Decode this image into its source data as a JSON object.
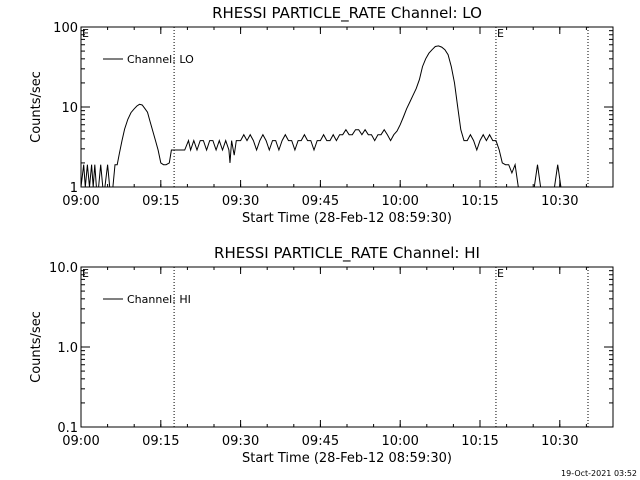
{
  "chart_data": [
    {
      "type": "line",
      "title": "RHESSI PARTICLE_RATE Channel: LO",
      "xlabel": "Start Time (28-Feb-12 08:59:30)",
      "ylabel": "Counts/sec",
      "yscale": "log",
      "xlim": [
        "09:00",
        "10:40"
      ],
      "ylim": [
        1,
        100
      ],
      "x_ticks": [
        "09:00",
        "09:15",
        "09:30",
        "09:45",
        "10:00",
        "10:15",
        "10:30"
      ],
      "y_ticks": [
        "1",
        "10",
        "100"
      ],
      "legend": {
        "entries": [
          "Channel: LO"
        ],
        "placement": "top-left"
      },
      "markers": [
        {
          "time": "09:00",
          "label": "E"
        },
        {
          "time": "10:18",
          "label": "E"
        }
      ],
      "vertical_lines": [
        "09:17.5",
        "10:18",
        "10:35.3"
      ],
      "series": [
        {
          "name": "Channel: LO",
          "points": [
            [
              0.0,
              1
            ],
            [
              0.5,
              1.9
            ],
            [
              0.8,
              1
            ],
            [
              1.2,
              1.9
            ],
            [
              1.6,
              1
            ],
            [
              2.0,
              1.9
            ],
            [
              2.3,
              1
            ],
            [
              2.6,
              1.9
            ],
            [
              2.9,
              1
            ],
            [
              3.3,
              1
            ],
            [
              3.7,
              1.9
            ],
            [
              4.1,
              1
            ],
            [
              4.5,
              1
            ],
            [
              5.0,
              1.9
            ],
            [
              5.4,
              1
            ],
            [
              6.0,
              1
            ],
            [
              6.4,
              1.9
            ],
            [
              6.8,
              1.9
            ],
            [
              7.2,
              2.6
            ],
            [
              7.7,
              3.8
            ],
            [
              8.2,
              5.3
            ],
            [
              8.8,
              7.0
            ],
            [
              9.4,
              8.5
            ],
            [
              10.0,
              9.5
            ],
            [
              10.5,
              10.3
            ],
            [
              11.0,
              10.8
            ],
            [
              11.5,
              10.6
            ],
            [
              12.0,
              9.6
            ],
            [
              12.5,
              8.6
            ],
            [
              13.0,
              6.5
            ],
            [
              13.5,
              5.0
            ],
            [
              14.0,
              3.8
            ],
            [
              14.5,
              2.9
            ],
            [
              15.0,
              2.0
            ],
            [
              15.5,
              1.9
            ],
            [
              16.0,
              1.9
            ],
            [
              16.6,
              2.0
            ],
            [
              17.0,
              2.9
            ],
            [
              17.5,
              2.9
            ],
            [
              18.5,
              2.9
            ],
            [
              19.5,
              2.9
            ],
            [
              20.2,
              3.8
            ],
            [
              20.6,
              2.9
            ],
            [
              21.2,
              3.8
            ],
            [
              21.8,
              2.9
            ],
            [
              22.4,
              3.8
            ],
            [
              23.0,
              3.8
            ],
            [
              23.6,
              2.9
            ],
            [
              24.2,
              3.8
            ],
            [
              24.8,
              3.8
            ],
            [
              25.4,
              2.9
            ],
            [
              26.0,
              3.8
            ],
            [
              26.6,
              2.9
            ],
            [
              27.2,
              3.8
            ],
            [
              27.8,
              2.9
            ],
            [
              28.0,
              2.0
            ],
            [
              28.3,
              3.8
            ],
            [
              28.8,
              2.5
            ],
            [
              29.2,
              3.8
            ],
            [
              30.0,
              3.8
            ],
            [
              30.6,
              4.5
            ],
            [
              31.2,
              3.8
            ],
            [
              31.8,
              4.5
            ],
            [
              32.4,
              3.8
            ],
            [
              33.0,
              2.9
            ],
            [
              33.6,
              3.8
            ],
            [
              34.2,
              4.5
            ],
            [
              34.8,
              3.8
            ],
            [
              35.4,
              2.9
            ],
            [
              36.0,
              3.8
            ],
            [
              36.6,
              3.8
            ],
            [
              37.2,
              2.9
            ],
            [
              37.8,
              3.8
            ],
            [
              38.4,
              4.5
            ],
            [
              39.0,
              3.8
            ],
            [
              39.6,
              3.8
            ],
            [
              40.2,
              2.9
            ],
            [
              40.8,
              3.8
            ],
            [
              41.4,
              3.8
            ],
            [
              42.0,
              4.5
            ],
            [
              42.6,
              3.8
            ],
            [
              43.2,
              3.8
            ],
            [
              43.8,
              2.9
            ],
            [
              44.4,
              3.8
            ],
            [
              45.0,
              3.8
            ],
            [
              45.6,
              4.5
            ],
            [
              46.2,
              3.8
            ],
            [
              46.8,
              3.8
            ],
            [
              47.4,
              4.5
            ],
            [
              48.0,
              3.8
            ],
            [
              48.6,
              4.5
            ],
            [
              49.2,
              4.5
            ],
            [
              49.8,
              5.2
            ],
            [
              50.4,
              4.5
            ],
            [
              51.0,
              4.5
            ],
            [
              51.6,
              5.2
            ],
            [
              52.2,
              5.2
            ],
            [
              52.8,
              4.5
            ],
            [
              53.4,
              5.2
            ],
            [
              54.0,
              4.5
            ],
            [
              54.6,
              4.5
            ],
            [
              55.2,
              3.8
            ],
            [
              55.8,
              4.5
            ],
            [
              56.4,
              4.5
            ],
            [
              57.0,
              5.2
            ],
            [
              57.6,
              4.5
            ],
            [
              58.2,
              3.8
            ],
            [
              58.8,
              4.5
            ],
            [
              59.4,
              5.0
            ],
            [
              60.0,
              6.0
            ],
            [
              60.6,
              7.5
            ],
            [
              61.2,
              9.5
            ],
            [
              61.8,
              11.5
            ],
            [
              62.4,
              14
            ],
            [
              63.0,
              17
            ],
            [
              63.6,
              22
            ],
            [
              64.2,
              32
            ],
            [
              64.8,
              40
            ],
            [
              65.4,
              47
            ],
            [
              66.0,
              52
            ],
            [
              66.6,
              57
            ],
            [
              67.2,
              58
            ],
            [
              67.8,
              56
            ],
            [
              68.4,
              52
            ],
            [
              69.0,
              45
            ],
            [
              69.6,
              32
            ],
            [
              70.2,
              20
            ],
            [
              70.8,
              10
            ],
            [
              71.4,
              5.2
            ],
            [
              72.0,
              3.8
            ],
            [
              72.6,
              3.8
            ],
            [
              73.2,
              4.5
            ],
            [
              73.8,
              3.8
            ],
            [
              74.4,
              2.9
            ],
            [
              75.0,
              3.8
            ],
            [
              75.6,
              4.5
            ],
            [
              76.2,
              3.8
            ],
            [
              76.8,
              4.5
            ],
            [
              77.4,
              3.8
            ],
            [
              78.0,
              3.8
            ],
            [
              78.6,
              2.9
            ],
            [
              79.2,
              2.0
            ],
            [
              79.8,
              1.9
            ],
            [
              80.4,
              1.9
            ],
            [
              81.0,
              1.5
            ],
            [
              81.6,
              1.9
            ],
            [
              82.2,
              1
            ],
            [
              82.8,
              1
            ],
            [
              84.0,
              1
            ],
            [
              85.2,
              1
            ],
            [
              85.8,
              1.9
            ],
            [
              86.4,
              1
            ],
            [
              88.0,
              1
            ],
            [
              89.0,
              1
            ],
            [
              89.6,
              1.9
            ],
            [
              90.2,
              1
            ]
          ]
        }
      ]
    },
    {
      "type": "line",
      "title": "RHESSI PARTICLE_RATE Channel: HI",
      "xlabel": "Start Time (28-Feb-12 08:59:30)",
      "ylabel": "Counts/sec",
      "yscale": "log",
      "xlim": [
        "09:00",
        "10:40"
      ],
      "ylim": [
        0.1,
        10
      ],
      "x_ticks": [
        "09:00",
        "09:15",
        "09:30",
        "09:45",
        "10:00",
        "10:15",
        "10:30"
      ],
      "y_ticks": [
        "0.1",
        "1.0",
        "10.0"
      ],
      "legend": {
        "entries": [
          "Channel: HI"
        ],
        "placement": "top-left"
      },
      "markers": [
        {
          "time": "09:00",
          "label": "E"
        },
        {
          "time": "10:18",
          "label": "E"
        }
      ],
      "vertical_lines": [
        "09:17.5",
        "10:18",
        "10:35.3"
      ],
      "series": [
        {
          "name": "Channel: HI",
          "points": []
        }
      ]
    }
  ],
  "footer": {
    "timestamp": "19-Oct-2021 03:52"
  },
  "colors": {
    "background": "#ffffff",
    "foreground": "#000000"
  }
}
